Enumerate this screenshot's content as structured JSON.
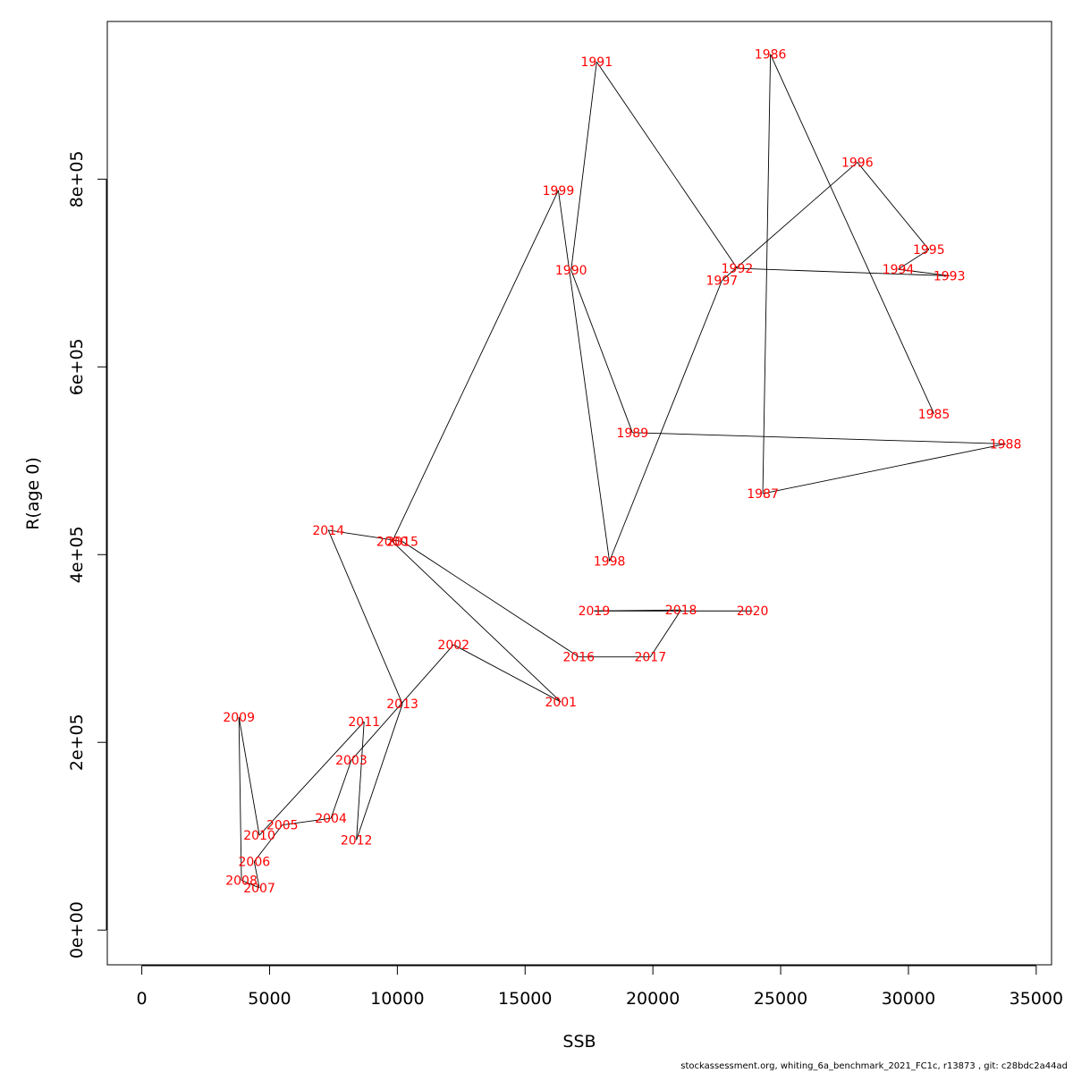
{
  "chart_data": {
    "type": "line",
    "title": "",
    "xlabel": "SSB",
    "ylabel": "R(age 0)",
    "xlim": [
      -1350,
      35600
    ],
    "ylim": [
      -37000,
      968000
    ],
    "x_ticks": [
      0,
      5000,
      10000,
      15000,
      20000,
      25000,
      30000,
      35000
    ],
    "x_tick_labels": [
      "0",
      "5000",
      "10000",
      "15000",
      "20000",
      "25000",
      "30000",
      "35000"
    ],
    "y_ticks": [
      0,
      200000,
      400000,
      600000,
      800000
    ],
    "y_tick_labels": [
      "0e+00",
      "2e+05",
      "4e+05",
      "6e+05",
      "8e+05"
    ],
    "grid": false,
    "line_color": "#000000",
    "label_color": "#ff0000",
    "points": [
      {
        "year": "1985",
        "ssb": 31000,
        "rec": 550000
      },
      {
        "year": "1986",
        "ssb": 24600,
        "rec": 933000
      },
      {
        "year": "1987",
        "ssb": 24300,
        "rec": 465000
      },
      {
        "year": "1988",
        "ssb": 33800,
        "rec": 518000
      },
      {
        "year": "1989",
        "ssb": 19200,
        "rec": 530000
      },
      {
        "year": "1990",
        "ssb": 16800,
        "rec": 703000
      },
      {
        "year": "1991",
        "ssb": 17800,
        "rec": 925000
      },
      {
        "year": "1992",
        "ssb": 23300,
        "rec": 705000
      },
      {
        "year": "1993",
        "ssb": 31600,
        "rec": 697000
      },
      {
        "year": "1994",
        "ssb": 29600,
        "rec": 704000
      },
      {
        "year": "1995",
        "ssb": 30800,
        "rec": 725000
      },
      {
        "year": "1996",
        "ssb": 28000,
        "rec": 818000
      },
      {
        "year": "1997",
        "ssb": 22700,
        "rec": 692000
      },
      {
        "year": "1998",
        "ssb": 18300,
        "rec": 393000
      },
      {
        "year": "1999",
        "ssb": 16300,
        "rec": 788000
      },
      {
        "year": "2000",
        "ssb": 9800,
        "rec": 414000
      },
      {
        "year": "2001",
        "ssb": 16400,
        "rec": 243000
      },
      {
        "year": "2002",
        "ssb": 12200,
        "rec": 304000
      },
      {
        "year": "2003",
        "ssb": 8200,
        "rec": 181000
      },
      {
        "year": "2004",
        "ssb": 7400,
        "rec": 119000
      },
      {
        "year": "2005",
        "ssb": 5500,
        "rec": 112000
      },
      {
        "year": "2006",
        "ssb": 4400,
        "rec": 73000
      },
      {
        "year": "2007",
        "ssb": 4600,
        "rec": 45000
      },
      {
        "year": "2008",
        "ssb": 3900,
        "rec": 53000
      },
      {
        "year": "2009",
        "ssb": 3800,
        "rec": 227000
      },
      {
        "year": "2010",
        "ssb": 4600,
        "rec": 101000
      },
      {
        "year": "2011",
        "ssb": 8700,
        "rec": 222000
      },
      {
        "year": "2012",
        "ssb": 8400,
        "rec": 96000
      },
      {
        "year": "2013",
        "ssb": 10200,
        "rec": 241000
      },
      {
        "year": "2014",
        "ssb": 7300,
        "rec": 426000
      },
      {
        "year": "2015",
        "ssb": 10200,
        "rec": 414000
      },
      {
        "year": "2016",
        "ssb": 17100,
        "rec": 291000
      },
      {
        "year": "2017",
        "ssb": 19900,
        "rec": 291000
      },
      {
        "year": "2018",
        "ssb": 21100,
        "rec": 341000
      },
      {
        "year": "2019",
        "ssb": 17700,
        "rec": 340000
      },
      {
        "year": "2020",
        "ssb": 23900,
        "rec": 340000
      }
    ]
  },
  "footer": "stockassessment.org, whiting_6a_benchmark_2021_FC1c, r13873 , git: c28bdc2a44ad"
}
